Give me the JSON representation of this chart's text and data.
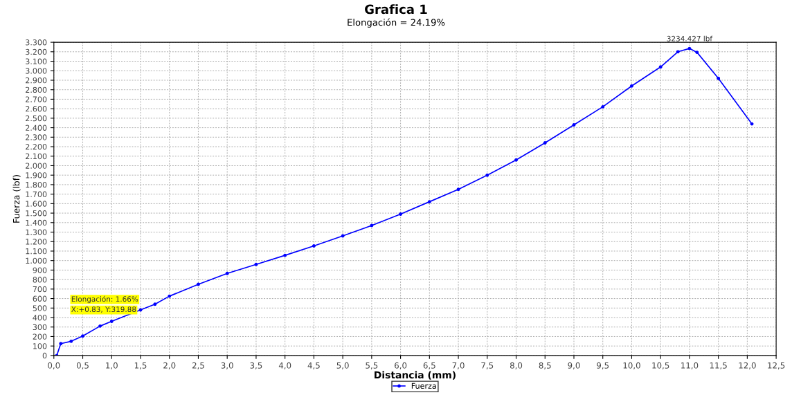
{
  "chart_data": {
    "type": "line",
    "title": "Grafica 1",
    "subtitle": "Elongación = 24.19%",
    "xlabel": "Distancia (mm)",
    "ylabel": "Fuerza (lbf)",
    "series": [
      {
        "name": "Fuerza",
        "color": "#0000ff",
        "x": [
          0.05,
          0.12,
          0.3,
          0.5,
          0.8,
          1.0,
          1.5,
          1.75,
          2.0,
          2.5,
          3.0,
          3.5,
          4.0,
          4.5,
          5.0,
          5.5,
          6.0,
          6.5,
          7.0,
          7.5,
          8.0,
          8.5,
          9.0,
          9.5,
          10.0,
          10.5,
          10.8,
          11.0,
          11.13,
          11.5,
          12.08
        ],
        "values": [
          0,
          125,
          150,
          205,
          310,
          360,
          480,
          540,
          625,
          750,
          865,
          960,
          1055,
          1155,
          1260,
          1370,
          1490,
          1620,
          1750,
          1900,
          2060,
          2240,
          2430,
          2620,
          2840,
          3040,
          3200,
          3234.427,
          3194,
          2920,
          2440
        ]
      }
    ],
    "annotations": [
      {
        "text": "3234.427 lbf",
        "x": 11.0,
        "y": 3234.427
      },
      "Elongación: 1.66%",
      "X:+0.83, Y:319.88"
    ],
    "xlim": [
      0,
      12.5
    ],
    "ylim": [
      0,
      3300
    ],
    "xticks": [
      {
        "value": 0,
        "label": "0,0"
      },
      {
        "value": 0.5,
        "label": "0,5"
      },
      {
        "value": 1,
        "label": "1,0"
      },
      {
        "value": 1.5,
        "label": "1,5"
      },
      {
        "value": 2,
        "label": "2,0"
      },
      {
        "value": 2.5,
        "label": "2,5"
      },
      {
        "value": 3,
        "label": "3,0"
      },
      {
        "value": 3.5,
        "label": "3,5"
      },
      {
        "value": 4,
        "label": "4,0"
      },
      {
        "value": 4.5,
        "label": "4,5"
      },
      {
        "value": 5,
        "label": "5,0"
      },
      {
        "value": 5.5,
        "label": "5,5"
      },
      {
        "value": 6,
        "label": "6,0"
      },
      {
        "value": 6.5,
        "label": "6,5"
      },
      {
        "value": 7,
        "label": "7,0"
      },
      {
        "value": 7.5,
        "label": "7,5"
      },
      {
        "value": 8,
        "label": "8,0"
      },
      {
        "value": 8.5,
        "label": "8,5"
      },
      {
        "value": 9,
        "label": "9,0"
      },
      {
        "value": 9.5,
        "label": "9,5"
      },
      {
        "value": 10,
        "label": "10,0"
      },
      {
        "value": 10.5,
        "label": "10,5"
      },
      {
        "value": 11,
        "label": "11,0"
      },
      {
        "value": 11.5,
        "label": "11,5"
      },
      {
        "value": 12,
        "label": "12,0"
      },
      {
        "value": 12.5,
        "label": "12,5"
      }
    ],
    "yticks": [
      0,
      100,
      200,
      300,
      400,
      500,
      600,
      700,
      800,
      900,
      {
        "value": 1000,
        "label": "1.000"
      },
      {
        "value": 1100,
        "label": "1.100"
      },
      {
        "value": 1200,
        "label": "1.200"
      },
      {
        "value": 1300,
        "label": "1.300"
      },
      {
        "value": 1400,
        "label": "1.400"
      },
      {
        "value": 1500,
        "label": "1.500"
      },
      {
        "value": 1600,
        "label": "1.600"
      },
      {
        "value": 1700,
        "label": "1.700"
      },
      {
        "value": 1800,
        "label": "1.800"
      },
      {
        "value": 1900,
        "label": "1.900"
      },
      {
        "value": 2000,
        "label": "2.000"
      },
      {
        "value": 2100,
        "label": "2.100"
      },
      {
        "value": 2200,
        "label": "2.200"
      },
      {
        "value": 2300,
        "label": "2.300"
      },
      {
        "value": 2400,
        "label": "2.400"
      },
      {
        "value": 2500,
        "label": "2.500"
      },
      {
        "value": 2600,
        "label": "2.600"
      },
      {
        "value": 2700,
        "label": "2.700"
      },
      {
        "value": 2800,
        "label": "2.800"
      },
      {
        "value": 2900,
        "label": "2.900"
      },
      {
        "value": 3000,
        "label": "3.000"
      },
      {
        "value": 3100,
        "label": "3.100"
      },
      {
        "value": 3200,
        "label": "3.200"
      },
      {
        "value": 3300,
        "label": "3.300"
      }
    ],
    "grid": true,
    "legend": "bottom",
    "marker": "circle",
    "line_style": "solid"
  }
}
